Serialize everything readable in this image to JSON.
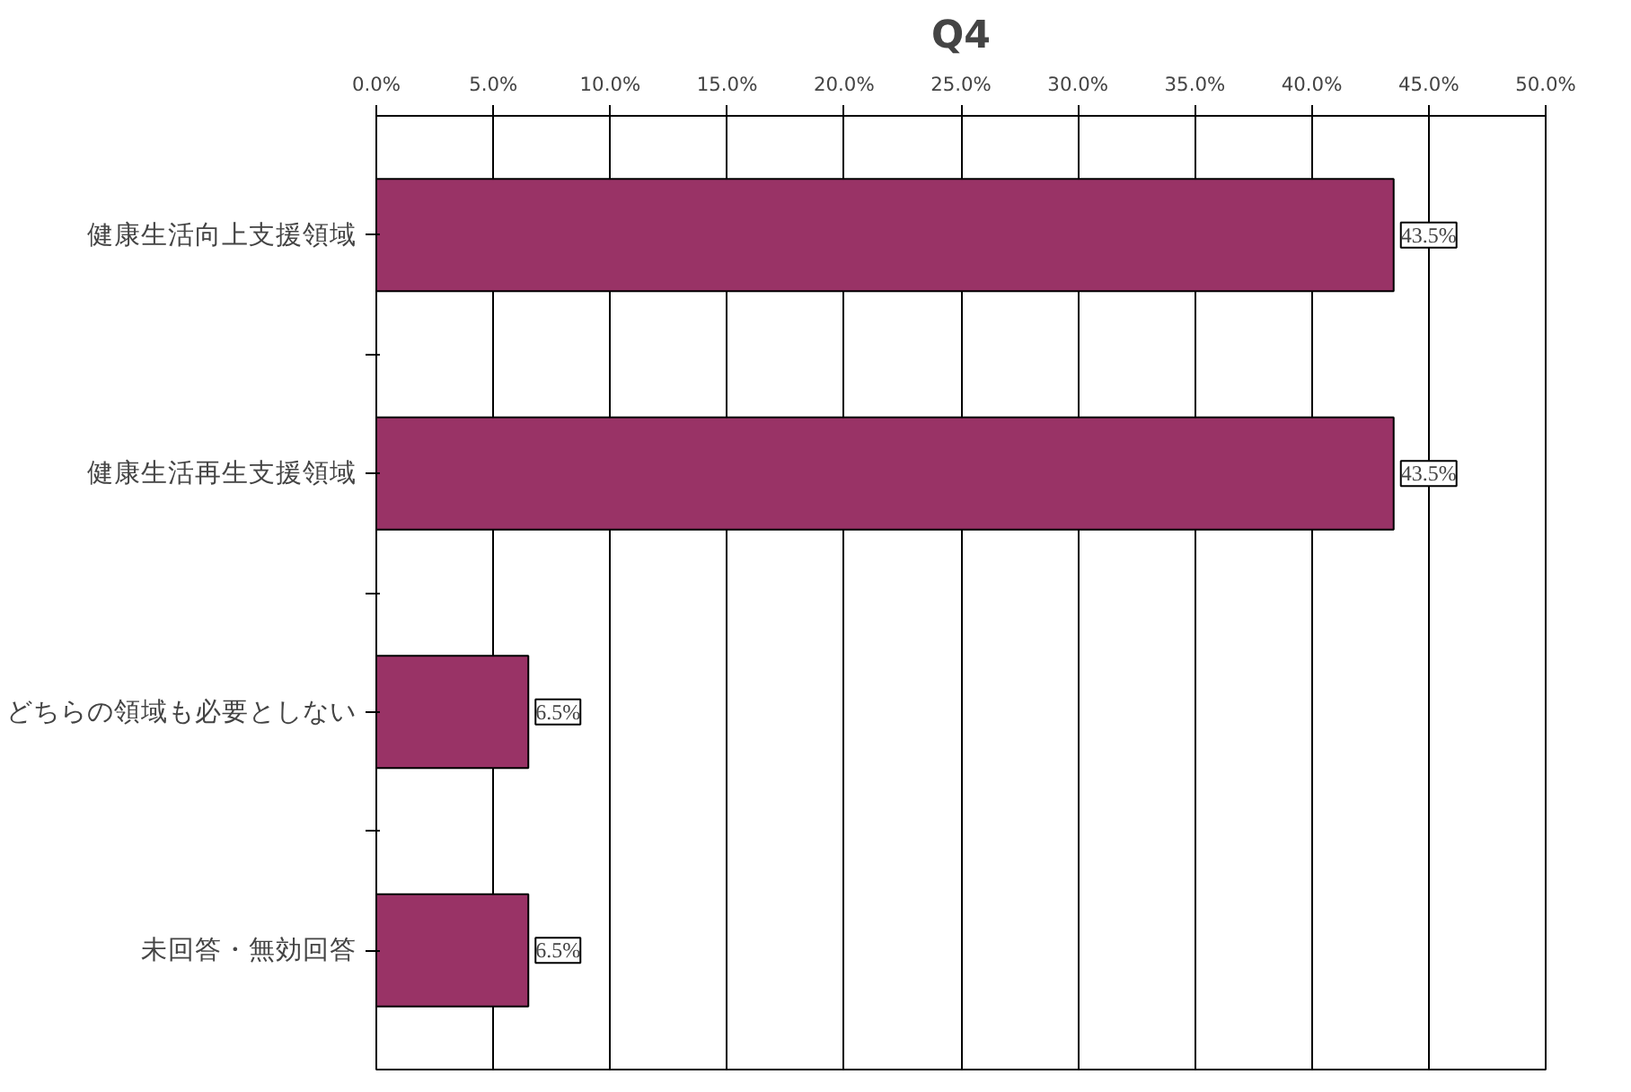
{
  "chart_data": {
    "type": "bar",
    "orientation": "horizontal",
    "title": "Q4",
    "categories": [
      "健康生活向上支援領域",
      "健康生活再生支援領域",
      "どちらの領域も必要としない",
      "未回答・無効回答"
    ],
    "values": [
      43.5,
      43.5,
      6.5,
      6.5
    ],
    "color": "#993366",
    "value_labels": [
      "43.5%",
      "43.5%",
      "6.5%",
      "6.5%"
    ],
    "xlim": [
      0,
      50
    ],
    "xticks": [
      {
        "value": 0,
        "label": "0.0%"
      },
      {
        "value": 5,
        "label": "5.0%"
      },
      {
        "value": 10,
        "label": "10.0%"
      },
      {
        "value": 15,
        "label": "15.0%"
      },
      {
        "value": 20,
        "label": "20.0%"
      },
      {
        "value": 25,
        "label": "25.0%"
      },
      {
        "value": 30,
        "label": "30.0%"
      },
      {
        "value": 35,
        "label": "35.0%"
      },
      {
        "value": 40,
        "label": "40.0%"
      },
      {
        "value": 45,
        "label": "45.0%"
      },
      {
        "value": 50,
        "label": "50.0%"
      }
    ],
    "grid": "x"
  }
}
